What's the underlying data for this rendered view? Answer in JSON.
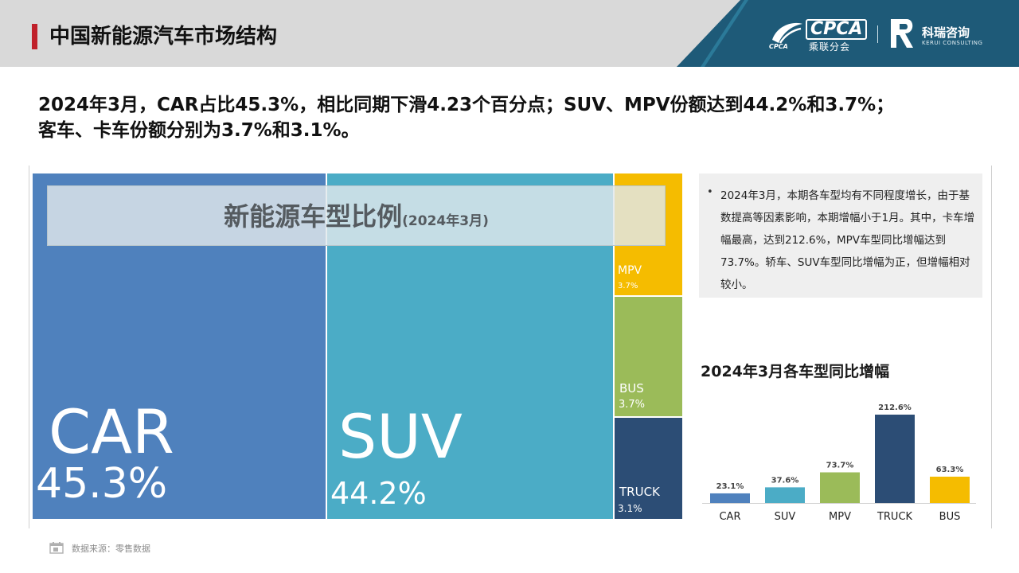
{
  "header": {
    "title": "中国新能源汽车市场结构",
    "logo_cpca_text": "CPCA",
    "logo_cpca_sub": "乘联分会",
    "logo_cpca_small": "CPCA",
    "logo_kerui_name": "科瑞咨询",
    "logo_kerui_en": "KERUI CONSULTING",
    "accent_color": "#c0202a"
  },
  "headline": {
    "line1": "2024年3月，CAR占比45.3%，相比同期下滑4.23个百分点；SUV、MPV份额达到44.2%和3.7%；",
    "line2": "客车、卡车份额分别为3.7%和3.1%。"
  },
  "treemap": {
    "title": "新能源车型比例",
    "subtitle": "(2024年3月)",
    "tiles": [
      {
        "label": "CAR",
        "value_text": "45.3%",
        "color": "#4f81bd"
      },
      {
        "label": "SUV",
        "value_text": "44.2%",
        "color": "#4bacc6"
      },
      {
        "label": "MPV",
        "value_text": "3.7%",
        "color": "#f5bc00"
      },
      {
        "label": "BUS",
        "value_text": "3.7%",
        "color": "#9bbb59"
      },
      {
        "label": "TRUCK",
        "value_text": "3.1%",
        "color": "#2c4d75"
      }
    ]
  },
  "note": {
    "bullet": "•",
    "text": "2024年3月，本期各车型均有不同程度增长，由于基数提高等因素影响，本期增幅小于1月。其中，卡车增幅最高，达到212.6%，MPV车型同比增幅达到73.7%。轿车、SUV车型同比增幅为正，但增幅相对较小。"
  },
  "bar_chart": {
    "title": "2024年3月各车型同比增幅"
  },
  "chart_data": [
    {
      "type": "treemap",
      "title": "新能源车型比例",
      "subtitle": "(2024年3月)",
      "categories": [
        "CAR",
        "SUV",
        "MPV",
        "BUS",
        "TRUCK"
      ],
      "values": [
        45.3,
        44.2,
        3.7,
        3.7,
        3.1
      ],
      "unit": "%"
    },
    {
      "type": "bar",
      "title": "2024年3月各车型同比增幅",
      "categories": [
        "CAR",
        "SUV",
        "MPV",
        "TRUCK",
        "BUS"
      ],
      "values": [
        23.1,
        37.6,
        73.7,
        212.6,
        63.3
      ],
      "value_labels": [
        "23.1%",
        "37.6%",
        "73.7%",
        "212.6%",
        "63.3%"
      ],
      "colors": [
        "#4f81bd",
        "#4bacc6",
        "#9bbb59",
        "#2c4d75",
        "#f5bc00"
      ],
      "ylim": [
        0,
        212.6
      ],
      "grid": false
    }
  ],
  "source": {
    "text": "数据来源：零售数据"
  }
}
